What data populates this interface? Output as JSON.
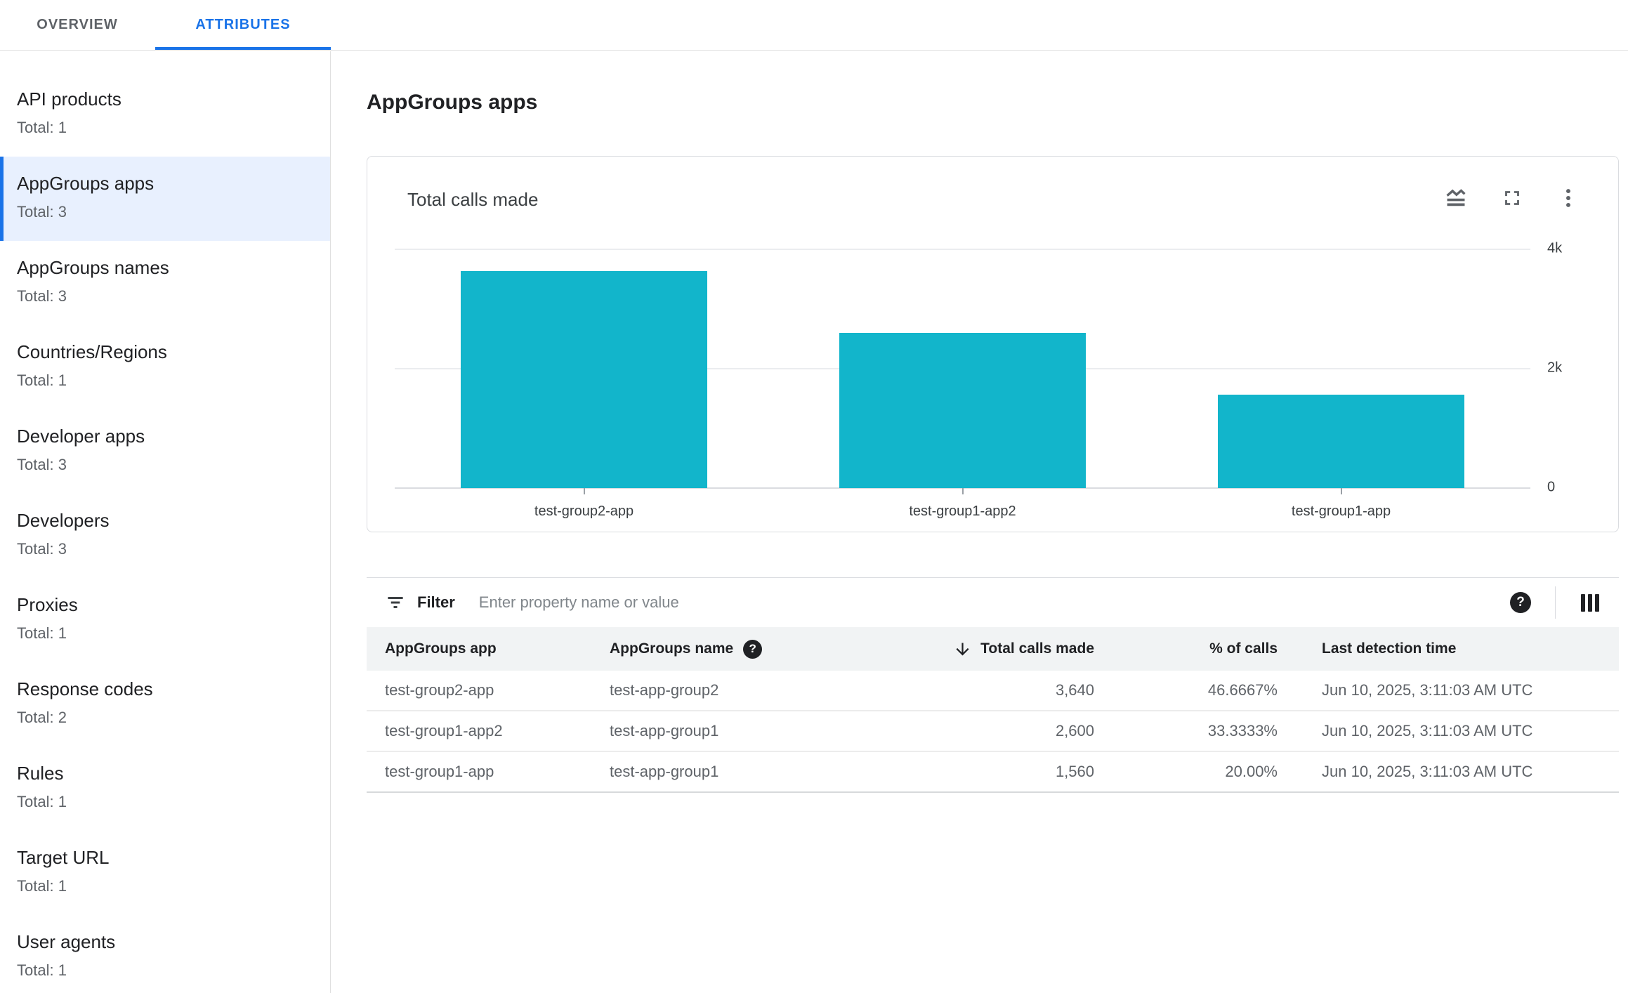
{
  "tabs": [
    {
      "label": "OVERVIEW",
      "active": false
    },
    {
      "label": "ATTRIBUTES",
      "active": true
    }
  ],
  "sidebar": {
    "items": [
      {
        "label": "API products",
        "total": "Total: 1",
        "selected": false
      },
      {
        "label": "AppGroups apps",
        "total": "Total: 3",
        "selected": true
      },
      {
        "label": "AppGroups names",
        "total": "Total: 3",
        "selected": false
      },
      {
        "label": "Countries/Regions",
        "total": "Total: 1",
        "selected": false
      },
      {
        "label": "Developer apps",
        "total": "Total: 3",
        "selected": false
      },
      {
        "label": "Developers",
        "total": "Total: 3",
        "selected": false
      },
      {
        "label": "Proxies",
        "total": "Total: 1",
        "selected": false
      },
      {
        "label": "Response codes",
        "total": "Total: 2",
        "selected": false
      },
      {
        "label": "Rules",
        "total": "Total: 1",
        "selected": false
      },
      {
        "label": "Target URL",
        "total": "Total: 1",
        "selected": false
      },
      {
        "label": "User agents",
        "total": "Total: 1",
        "selected": false
      }
    ]
  },
  "page": {
    "title": "AppGroups apps"
  },
  "chart_card": {
    "title": "Total calls made",
    "icons": [
      "area-chart-icon",
      "fullscreen-icon",
      "kebab-menu-icon"
    ]
  },
  "chart_data": {
    "type": "bar",
    "title": "Total calls made",
    "categories": [
      "test-group2-app",
      "test-group1-app2",
      "test-group1-app"
    ],
    "values": [
      3640,
      2600,
      1560
    ],
    "xlabel": "",
    "ylabel": "",
    "ylim": [
      0,
      4000
    ],
    "y_ticks": [
      {
        "value": 0,
        "label": "0"
      },
      {
        "value": 2000,
        "label": "2k"
      },
      {
        "value": 4000,
        "label": "4k"
      }
    ],
    "grid": "horizontal",
    "legend": "none",
    "bar_color": "#12b5cb"
  },
  "filter": {
    "label": "Filter",
    "placeholder": "Enter property name or value",
    "icons": [
      "filter-list-icon",
      "help-icon",
      "column-picker-icon"
    ]
  },
  "table": {
    "columns": [
      {
        "label": "AppGroups app"
      },
      {
        "label": "AppGroups name",
        "help_icon": true
      },
      {
        "label": "Total calls made",
        "sort": "desc"
      },
      {
        "label": "% of calls"
      },
      {
        "label": "Last detection time"
      }
    ],
    "rows": [
      [
        "test-group2-app",
        "test-app-group2",
        "3,640",
        "46.6667%",
        "Jun 10, 2025, 3:11:03 AM UTC"
      ],
      [
        "test-group1-app2",
        "test-app-group1",
        "2,600",
        "33.3333%",
        "Jun 10, 2025, 3:11:03 AM UTC"
      ],
      [
        "test-group1-app",
        "test-app-group1",
        "1,560",
        "20.00%",
        "Jun 10, 2025, 3:11:03 AM UTC"
      ]
    ]
  },
  "colors": {
    "accent_blue": "#1a73e8",
    "bar_teal": "#12b5cb",
    "selected_item_bg": "#e8f0fe",
    "table_header_bg": "#f1f3f4"
  }
}
